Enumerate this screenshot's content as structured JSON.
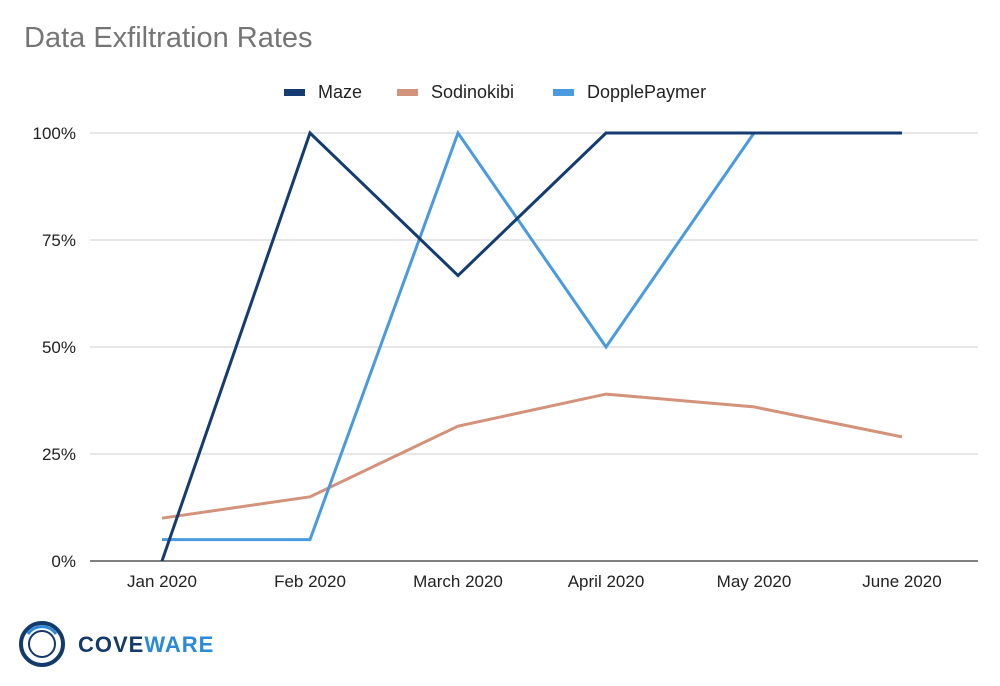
{
  "chart_data": {
    "type": "line",
    "title": "Data Exfiltration Rates",
    "categories": [
      "Jan 2020",
      "Feb 2020",
      "March 2020",
      "April 2020",
      "May 2020",
      "June 2020"
    ],
    "y_ticks": [
      "0%",
      "25%",
      "50%",
      "75%",
      "100%"
    ],
    "ylim": [
      0,
      100
    ],
    "grid": true,
    "legend_position": "top",
    "series": [
      {
        "name": "Maze",
        "color": "#143c72",
        "values": [
          0,
          100,
          66.7,
          100,
          100,
          100
        ]
      },
      {
        "name": "Sodinokibi",
        "color": "#d3927a",
        "values": [
          10,
          15,
          31.5,
          39,
          36,
          29
        ]
      },
      {
        "name": "DopplePaymer",
        "color": "#4a9ae0",
        "values": [
          5,
          5,
          100,
          50,
          100,
          100
        ]
      }
    ]
  },
  "logo": {
    "text_a": "COVE",
    "text_b": "WARE"
  }
}
